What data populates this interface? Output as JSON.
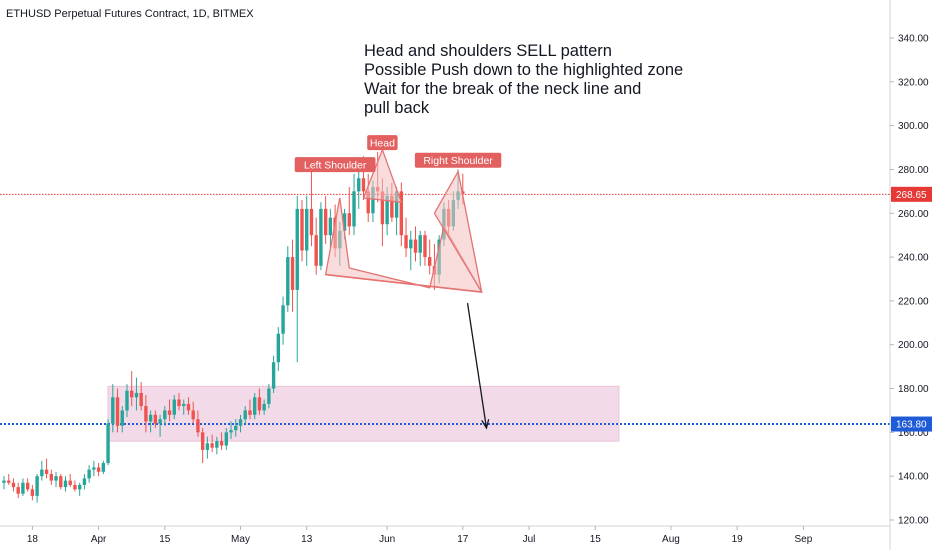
{
  "header": {
    "symbol": "ETHUSD Perpetual Futures Contract, 1D, BITMEX"
  },
  "annotation": {
    "lines": [
      "Head and shoulders SELL pattern",
      "Possible Push down to the highlighted zone",
      "Wait for the break of the neck line and",
      "pull back"
    ]
  },
  "colors": {
    "bull": "#26a69a",
    "bear": "#ef5350",
    "pattern_fill": "#f4c0c0",
    "pattern_stroke": "#e57373",
    "zone_fill": "#f1d4e4",
    "zone_stroke": "#e8b7cf",
    "price_line": "#e53935",
    "target_line": "#1e5bd6",
    "label_bg": "#e26060"
  },
  "chart_data": {
    "type": "candlestick",
    "symbol": "ETHUSD",
    "timeframe": "1D",
    "exchange": "BITMEX",
    "ylim": [
      120,
      350
    ],
    "y_ticks": [
      "340.00",
      "320.00",
      "300.00",
      "280.00",
      "260.00",
      "240.00",
      "220.00",
      "200.00",
      "180.00",
      "160.00",
      "140.00",
      "120.00"
    ],
    "x_tick_labels": [
      "18",
      "Apr",
      "15",
      "May",
      "13",
      "Jun",
      "17",
      "Jul",
      "15",
      "Aug",
      "19",
      "Sep"
    ],
    "x_tick_days": [
      6,
      20,
      34,
      50,
      64,
      81,
      97,
      111,
      125,
      141,
      155,
      169
    ],
    "last_price": {
      "value": 268.65,
      "label": "268.65"
    },
    "target": {
      "value": 163.8,
      "label": "163.80"
    },
    "zone": {
      "day_start": 22,
      "day_end": 130,
      "price_low": 156,
      "price_high": 181
    },
    "pattern_labels": [
      {
        "text": "Left Shoulder",
        "day": 70,
        "price": 282
      },
      {
        "text": "Head",
        "day": 80,
        "price": 292
      },
      {
        "text": "Right Shoulder",
        "day": 96,
        "price": 284
      }
    ],
    "pattern": {
      "shoulders_points": [
        {
          "day": 68,
          "price": 232
        },
        {
          "day": 71,
          "price": 267
        },
        {
          "day": 73,
          "price": 235
        },
        {
          "day": 90,
          "price": 226
        },
        {
          "day": 93,
          "price": 254
        },
        {
          "day": 101,
          "price": 224
        }
      ],
      "head_points": [
        {
          "day": 76,
          "price": 267
        },
        {
          "day": 80,
          "price": 289
        },
        {
          "day": 84,
          "price": 265
        }
      ],
      "right_shoulder_triangle": [
        {
          "day": 91,
          "price": 260
        },
        {
          "day": 96,
          "price": 279
        },
        {
          "day": 101,
          "price": 224
        }
      ],
      "neckline": [
        {
          "day": 68,
          "price": 232
        },
        {
          "day": 101,
          "price": 224
        }
      ]
    },
    "projection_arrow": {
      "from": {
        "day": 98,
        "price": 219
      },
      "to": {
        "day": 102,
        "price": 162
      }
    },
    "candles": [
      {
        "o": 137,
        "h": 140,
        "l": 134,
        "c": 138
      },
      {
        "o": 138,
        "h": 141,
        "l": 136,
        "c": 137
      },
      {
        "o": 137,
        "h": 139,
        "l": 133,
        "c": 135
      },
      {
        "o": 135,
        "h": 137,
        "l": 130,
        "c": 132
      },
      {
        "o": 132,
        "h": 139,
        "l": 131,
        "c": 137
      },
      {
        "o": 137,
        "h": 139,
        "l": 133,
        "c": 134
      },
      {
        "o": 134,
        "h": 136,
        "l": 129,
        "c": 131
      },
      {
        "o": 131,
        "h": 141,
        "l": 128,
        "c": 140
      },
      {
        "o": 140,
        "h": 147,
        "l": 138,
        "c": 143
      },
      {
        "o": 143,
        "h": 148,
        "l": 139,
        "c": 141
      },
      {
        "o": 141,
        "h": 143,
        "l": 136,
        "c": 138
      },
      {
        "o": 138,
        "h": 142,
        "l": 135,
        "c": 140
      },
      {
        "o": 140,
        "h": 141,
        "l": 134,
        "c": 135
      },
      {
        "o": 135,
        "h": 140,
        "l": 133,
        "c": 138
      },
      {
        "o": 138,
        "h": 141,
        "l": 135,
        "c": 136
      },
      {
        "o": 136,
        "h": 138,
        "l": 133,
        "c": 134
      },
      {
        "o": 134,
        "h": 137,
        "l": 131,
        "c": 136
      },
      {
        "o": 136,
        "h": 141,
        "l": 134,
        "c": 139
      },
      {
        "o": 139,
        "h": 145,
        "l": 137,
        "c": 143
      },
      {
        "o": 143,
        "h": 147,
        "l": 140,
        "c": 144
      },
      {
        "o": 144,
        "h": 146,
        "l": 140,
        "c": 142
      },
      {
        "o": 142,
        "h": 147,
        "l": 141,
        "c": 146
      },
      {
        "o": 146,
        "h": 166,
        "l": 145,
        "c": 164
      },
      {
        "o": 164,
        "h": 182,
        "l": 160,
        "c": 176
      },
      {
        "o": 176,
        "h": 180,
        "l": 160,
        "c": 163
      },
      {
        "o": 163,
        "h": 172,
        "l": 160,
        "c": 170
      },
      {
        "o": 170,
        "h": 182,
        "l": 167,
        "c": 179
      },
      {
        "o": 179,
        "h": 188,
        "l": 172,
        "c": 176
      },
      {
        "o": 176,
        "h": 185,
        "l": 170,
        "c": 178
      },
      {
        "o": 178,
        "h": 183,
        "l": 170,
        "c": 172
      },
      {
        "o": 172,
        "h": 177,
        "l": 160,
        "c": 165
      },
      {
        "o": 165,
        "h": 170,
        "l": 160,
        "c": 168
      },
      {
        "o": 168,
        "h": 170,
        "l": 162,
        "c": 164
      },
      {
        "o": 164,
        "h": 168,
        "l": 158,
        "c": 166
      },
      {
        "o": 166,
        "h": 172,
        "l": 163,
        "c": 170
      },
      {
        "o": 170,
        "h": 175,
        "l": 165,
        "c": 168
      },
      {
        "o": 168,
        "h": 177,
        "l": 166,
        "c": 175
      },
      {
        "o": 175,
        "h": 178,
        "l": 170,
        "c": 172
      },
      {
        "o": 172,
        "h": 175,
        "l": 168,
        "c": 173
      },
      {
        "o": 173,
        "h": 176,
        "l": 168,
        "c": 170
      },
      {
        "o": 170,
        "h": 174,
        "l": 164,
        "c": 166
      },
      {
        "o": 166,
        "h": 170,
        "l": 158,
        "c": 160
      },
      {
        "o": 160,
        "h": 162,
        "l": 146,
        "c": 152
      },
      {
        "o": 152,
        "h": 158,
        "l": 148,
        "c": 155
      },
      {
        "o": 155,
        "h": 159,
        "l": 151,
        "c": 153
      },
      {
        "o": 153,
        "h": 158,
        "l": 150,
        "c": 156
      },
      {
        "o": 156,
        "h": 160,
        "l": 152,
        "c": 154
      },
      {
        "o": 154,
        "h": 162,
        "l": 152,
        "c": 160
      },
      {
        "o": 160,
        "h": 165,
        "l": 157,
        "c": 161
      },
      {
        "o": 161,
        "h": 166,
        "l": 158,
        "c": 163
      },
      {
        "o": 163,
        "h": 168,
        "l": 160,
        "c": 166
      },
      {
        "o": 166,
        "h": 172,
        "l": 164,
        "c": 170
      },
      {
        "o": 170,
        "h": 175,
        "l": 166,
        "c": 168
      },
      {
        "o": 168,
        "h": 178,
        "l": 166,
        "c": 176
      },
      {
        "o": 176,
        "h": 180,
        "l": 168,
        "c": 170
      },
      {
        "o": 170,
        "h": 175,
        "l": 168,
        "c": 173
      },
      {
        "o": 173,
        "h": 182,
        "l": 171,
        "c": 180
      },
      {
        "o": 180,
        "h": 195,
        "l": 178,
        "c": 192
      },
      {
        "o": 192,
        "h": 208,
        "l": 188,
        "c": 205
      },
      {
        "o": 205,
        "h": 222,
        "l": 200,
        "c": 218
      },
      {
        "o": 218,
        "h": 245,
        "l": 215,
        "c": 240
      },
      {
        "o": 240,
        "h": 248,
        "l": 215,
        "c": 225
      },
      {
        "o": 225,
        "h": 268,
        "l": 192,
        "c": 262
      },
      {
        "o": 262,
        "h": 266,
        "l": 238,
        "c": 243
      },
      {
        "o": 243,
        "h": 268,
        "l": 236,
        "c": 262
      },
      {
        "o": 262,
        "h": 282,
        "l": 245,
        "c": 250
      },
      {
        "o": 250,
        "h": 258,
        "l": 232,
        "c": 236
      },
      {
        "o": 236,
        "h": 265,
        "l": 234,
        "c": 262
      },
      {
        "o": 262,
        "h": 268,
        "l": 246,
        "c": 250
      },
      {
        "o": 250,
        "h": 262,
        "l": 244,
        "c": 258
      },
      {
        "o": 258,
        "h": 264,
        "l": 240,
        "c": 244
      },
      {
        "o": 244,
        "h": 256,
        "l": 236,
        "c": 252
      },
      {
        "o": 252,
        "h": 262,
        "l": 248,
        "c": 260
      },
      {
        "o": 260,
        "h": 272,
        "l": 250,
        "c": 254
      },
      {
        "o": 254,
        "h": 278,
        "l": 250,
        "c": 270
      },
      {
        "o": 270,
        "h": 280,
        "l": 262,
        "c": 276
      },
      {
        "o": 276,
        "h": 286,
        "l": 266,
        "c": 270
      },
      {
        "o": 270,
        "h": 278,
        "l": 256,
        "c": 260
      },
      {
        "o": 260,
        "h": 275,
        "l": 256,
        "c": 272
      },
      {
        "o": 272,
        "h": 288,
        "l": 265,
        "c": 270
      },
      {
        "o": 270,
        "h": 276,
        "l": 245,
        "c": 255
      },
      {
        "o": 255,
        "h": 272,
        "l": 250,
        "c": 268
      },
      {
        "o": 268,
        "h": 274,
        "l": 256,
        "c": 258
      },
      {
        "o": 258,
        "h": 272,
        "l": 250,
        "c": 270
      },
      {
        "o": 270,
        "h": 274,
        "l": 245,
        "c": 250
      },
      {
        "o": 250,
        "h": 258,
        "l": 240,
        "c": 244
      },
      {
        "o": 244,
        "h": 252,
        "l": 234,
        "c": 248
      },
      {
        "o": 248,
        "h": 254,
        "l": 238,
        "c": 242
      },
      {
        "o": 242,
        "h": 252,
        "l": 236,
        "c": 250
      },
      {
        "o": 250,
        "h": 252,
        "l": 236,
        "c": 240
      },
      {
        "o": 240,
        "h": 248,
        "l": 232,
        "c": 236
      },
      {
        "o": 236,
        "h": 246,
        "l": 225,
        "c": 232
      },
      {
        "o": 232,
        "h": 250,
        "l": 228,
        "c": 248
      },
      {
        "o": 248,
        "h": 265,
        "l": 245,
        "c": 262
      },
      {
        "o": 262,
        "h": 266,
        "l": 250,
        "c": 254
      },
      {
        "o": 254,
        "h": 270,
        "l": 252,
        "c": 266
      },
      {
        "o": 266,
        "h": 280,
        "l": 262,
        "c": 270
      },
      {
        "o": 270,
        "h": 278,
        "l": 264,
        "c": 268.65
      }
    ]
  }
}
